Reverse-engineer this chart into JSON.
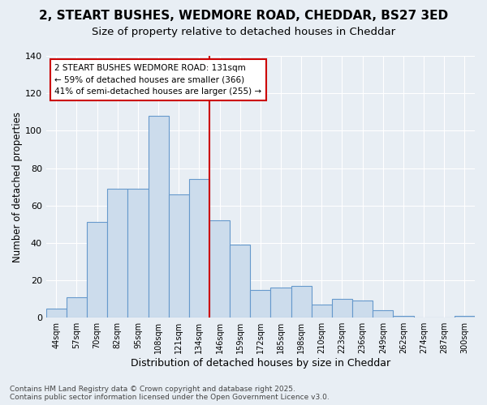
{
  "title": "2, STEART BUSHES, WEDMORE ROAD, CHEDDAR, BS27 3ED",
  "subtitle": "Size of property relative to detached houses in Cheddar",
  "xlabel": "Distribution of detached houses by size in Cheddar",
  "ylabel": "Number of detached properties",
  "categories": [
    "44sqm",
    "57sqm",
    "70sqm",
    "82sqm",
    "95sqm",
    "108sqm",
    "121sqm",
    "134sqm",
    "146sqm",
    "159sqm",
    "172sqm",
    "185sqm",
    "198sqm",
    "210sqm",
    "223sqm",
    "236sqm",
    "249sqm",
    "262sqm",
    "274sqm",
    "287sqm",
    "300sqm"
  ],
  "values": [
    5,
    11,
    51,
    69,
    69,
    108,
    66,
    74,
    52,
    39,
    15,
    16,
    17,
    7,
    10,
    9,
    4,
    1,
    0,
    0,
    1
  ],
  "bar_color": "#ccdcec",
  "bar_edge_color": "#6699cc",
  "vline_color": "#cc0000",
  "vline_x": 7.5,
  "annotation_text": "2 STEART BUSHES WEDMORE ROAD: 131sqm\n← 59% of detached houses are smaller (366)\n41% of semi-detached houses are larger (255) →",
  "annotation_box_color": "#ffffff",
  "annotation_box_edge": "#cc0000",
  "background_color": "#e8eef4",
  "grid_color": "#ffffff",
  "footer_text": "Contains HM Land Registry data © Crown copyright and database right 2025.\nContains public sector information licensed under the Open Government Licence v3.0.",
  "ylim": [
    0,
    140
  ],
  "yticks": [
    0,
    20,
    40,
    60,
    80,
    100,
    120,
    140
  ],
  "title_fontsize": 11,
  "subtitle_fontsize": 9.5
}
